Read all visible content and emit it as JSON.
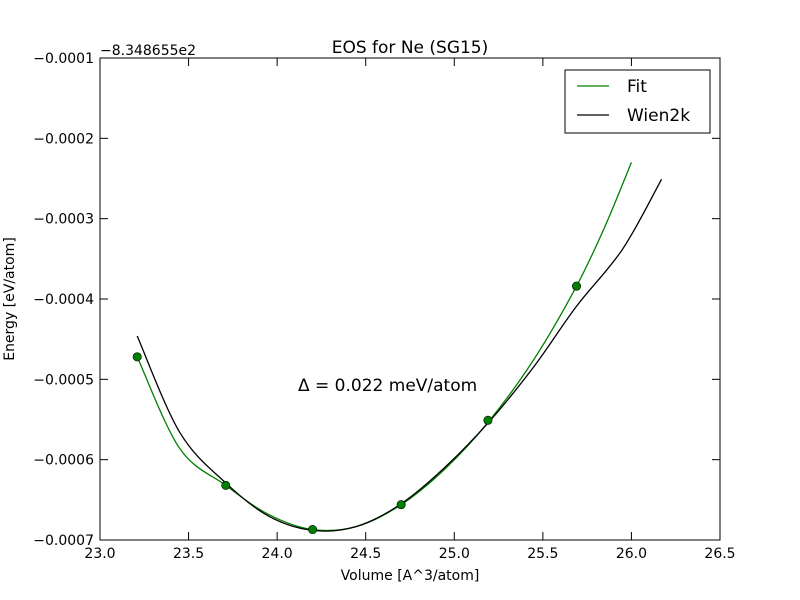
{
  "chart_data": {
    "type": "line",
    "title": "EOS for Ne (SG15)",
    "xlabel": "Volume [A^3/atom]",
    "ylabel": "Energy [eV/atom]",
    "offset_label": "−8.348655e2",
    "annotation": "Δ = 0.022 meV/atom",
    "xlim": [
      23.0,
      26.5
    ],
    "ylim": [
      -0.0007,
      -0.0001
    ],
    "x_ticks": [
      23.0,
      23.5,
      24.0,
      24.5,
      25.0,
      25.5,
      26.0,
      26.5
    ],
    "x_tick_labels": [
      "23.0",
      "23.5",
      "24.0",
      "24.5",
      "25.0",
      "25.5",
      "26.0",
      "26.5"
    ],
    "y_ticks": [
      -0.0001,
      -0.0002,
      -0.0003,
      -0.0004,
      -0.0005,
      -0.0006,
      -0.0007
    ],
    "y_tick_labels": [
      "−0.0001",
      "−0.0002",
      "−0.0003",
      "−0.0004",
      "−0.0005",
      "−0.0006",
      "−0.0007"
    ],
    "legend_position": "top-right",
    "series": [
      {
        "name": "Fit",
        "color": "#008000",
        "x": [
          23.21,
          23.45,
          23.71,
          23.95,
          24.2,
          24.45,
          24.7,
          24.95,
          25.2,
          25.45,
          25.69,
          25.85,
          26.0
        ],
        "y": [
          -0.000472,
          -0.000586,
          -0.000632,
          -0.000668,
          -0.000687,
          -0.000683,
          -0.000656,
          -0.000611,
          -0.000551,
          -0.000475,
          -0.000384,
          -0.00031,
          -0.00023
        ]
      },
      {
        "name": "Wien2k",
        "color": "#000000",
        "x": [
          23.21,
          23.45,
          23.71,
          23.95,
          24.2,
          24.45,
          24.7,
          24.95,
          25.2,
          25.45,
          25.69,
          25.95,
          26.17
        ],
        "y": [
          -0.000446,
          -0.000566,
          -0.000629,
          -0.00067,
          -0.000688,
          -0.000683,
          -0.000655,
          -0.000609,
          -0.000552,
          -0.000484,
          -0.000409,
          -0.000338,
          -0.000251
        ]
      }
    ],
    "points": {
      "name": "data points",
      "color": "#008000",
      "x": [
        23.21,
        23.71,
        24.2,
        24.7,
        25.19,
        25.69
      ],
      "y": [
        -0.000472,
        -0.000632,
        -0.000687,
        -0.000656,
        -0.000551,
        -0.000384
      ]
    }
  }
}
